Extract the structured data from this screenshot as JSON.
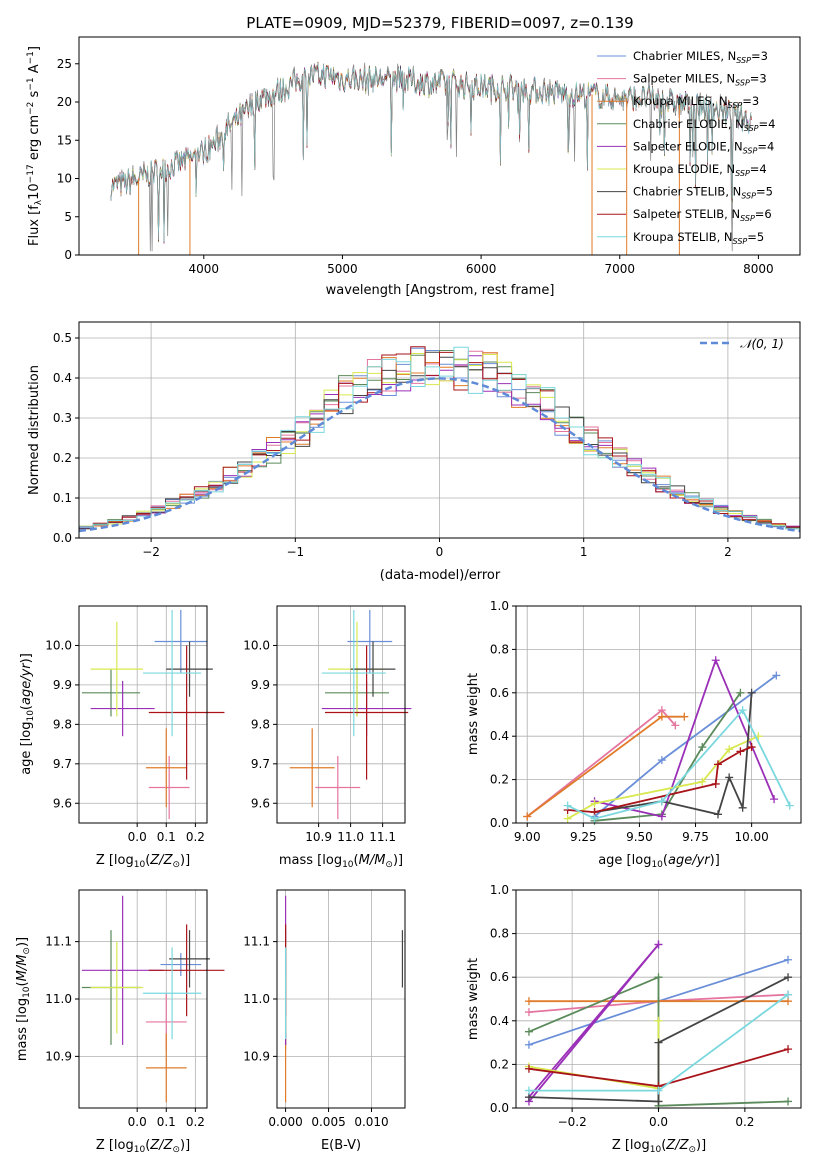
{
  "chart_data": [
    {
      "type": "line",
      "title": "PLATE=0909, MJD=52379, FIBERID=0097, z=0.139",
      "xlabel": "wavelength [Angstrom, rest frame]",
      "ylabel": "Flux [f$_\\lambda$10$^{-17}$ erg cm$^{-2}$ s$^{-1}$ A$^{-1}$]",
      "ylabel_parts": {
        "a": "Flux [f",
        "b": "λ",
        "c": "10",
        "d": "−17",
        "e": " erg cm",
        "f": "−2",
        "g": " s",
        "h": "−1",
        "i": " A",
        "j": "−1",
        "k": "]"
      },
      "xlim": [
        3100,
        8300
      ],
      "ylim": [
        0,
        28.5
      ],
      "xticks": [
        4000,
        5000,
        6000,
        7000,
        8000
      ],
      "yticks": [
        0,
        5,
        10,
        15,
        20,
        25
      ],
      "grid": false,
      "legend_position": "top-right",
      "continuum": {
        "x": [
          3330,
          3450,
          3600,
          3750,
          3900,
          4000,
          4100,
          4200,
          4300,
          4400,
          4500,
          4600,
          4700,
          4800,
          4900,
          5000,
          5200,
          5400,
          5600,
          5800,
          6000,
          6200,
          6400,
          6600,
          6800,
          7000,
          7200,
          7400,
          7600,
          7800,
          7950
        ],
        "y": [
          9,
          9.5,
          10.5,
          11.5,
          12.5,
          13.5,
          15,
          17,
          18.5,
          20.5,
          21,
          22,
          23,
          23.5,
          23.5,
          23,
          23,
          23,
          22.5,
          22.5,
          22,
          21.8,
          21.5,
          21,
          21,
          20.5,
          20.5,
          19.8,
          19.5,
          18.5,
          17.5
        ]
      },
      "series": [
        {
          "name_main": "Chabrier MILES, N",
          "name_sub": "SSP",
          "name_tail": "=3",
          "color": "#6a8fd8"
        },
        {
          "name_main": "Salpeter MILES, N",
          "name_sub": "SSP",
          "name_tail": "=3",
          "color": "#e4759f"
        },
        {
          "name_main": "Kroupa MILES, N",
          "name_sub": "SSP",
          "name_tail": "=3",
          "color": "#e07b2a"
        },
        {
          "name_main": "Chabrier ELODIE, N",
          "name_sub": "SSP",
          "name_tail": "=4",
          "color": "#5b8a5b"
        },
        {
          "name_main": "Salpeter ELODIE, N",
          "name_sub": "SSP",
          "name_tail": "=4",
          "color": "#9b30b8"
        },
        {
          "name_main": "Kroupa ELODIE, N",
          "name_sub": "SSP",
          "name_tail": "=4",
          "color": "#d8e84f"
        },
        {
          "name_main": "Chabrier STELIB, N",
          "name_sub": "SSP",
          "name_tail": "=5",
          "color": "#444444"
        },
        {
          "name_main": "Salpeter STELIB, N",
          "name_sub": "SSP",
          "name_tail": "=6",
          "color": "#a8141a"
        },
        {
          "name_main": "Kroupa STELIB, N",
          "name_sub": "SSP",
          "name_tail": "=5",
          "color": "#7ad8de"
        }
      ],
      "drops": [
        {
          "x": 3530,
          "color": "#e07b2a"
        },
        {
          "x": 3900,
          "color": "#e07b2a"
        },
        {
          "x": 6800,
          "color": "#e07b2a"
        },
        {
          "x": 7430,
          "color": "#e07b2a"
        },
        {
          "x": 7050,
          "color": "#e07b2a"
        }
      ]
    },
    {
      "type": "line",
      "xlabel": "(data-model)/error",
      "ylabel": "Normed distribution",
      "xlim": [
        -2.5,
        2.5
      ],
      "ylim": [
        0,
        0.54
      ],
      "xticks": [
        -2,
        -1,
        0,
        1,
        2
      ],
      "xtick_labels": [
        "−2",
        "−1",
        "0",
        "1",
        "2"
      ],
      "yticks": [
        0,
        0.1,
        0.2,
        0.3,
        0.4,
        0.5
      ],
      "ytick_labels": [
        "0.0",
        "0.1",
        "0.2",
        "0.3",
        "0.4",
        "0.5"
      ],
      "grid": true,
      "legend_position": "top-right",
      "gaussian_label": "𝒩(0, 1)",
      "gaussian_color": "#5f8ad8",
      "hist_bin_width": 0.1
    },
    {
      "type": "scatter",
      "xlabel": "Z [log$_{10}$(Z/Z$_\\odot$)]",
      "ylabel": "age [log$_{10}$(age/yr)]",
      "xlim": [
        -0.2,
        0.24
      ],
      "ylim": [
        9.55,
        10.1
      ],
      "xticks": [
        0.0,
        0.1,
        0.2
      ],
      "xtick_labels": [
        "0.0",
        "0.1",
        "0.2"
      ],
      "yticks": [
        9.6,
        9.7,
        9.8,
        9.9,
        10.0
      ],
      "ytick_labels": [
        "9.6",
        "9.7",
        "9.8",
        "9.9",
        "10.0"
      ],
      "grid": true,
      "points": [
        {
          "x": 0.15,
          "y": 10.01,
          "xerr": 0.09,
          "yerr": 0.08,
          "color": "#6a8fd8"
        },
        {
          "x": 0.11,
          "y": 9.64,
          "xerr": 0.07,
          "yerr": 0.08,
          "color": "#e4759f"
        },
        {
          "x": 0.1,
          "y": 9.69,
          "xerr": 0.07,
          "yerr": 0.1,
          "color": "#e07b2a"
        },
        {
          "x": -0.09,
          "y": 9.88,
          "xerr": 0.1,
          "yerr": 0.06,
          "color": "#5b8a5b"
        },
        {
          "x": -0.05,
          "y": 9.84,
          "xerr": 0.11,
          "yerr": 0.07,
          "color": "#9b30b8"
        },
        {
          "x": -0.07,
          "y": 9.94,
          "xerr": 0.09,
          "yerr": 0.12,
          "color": "#d8e84f"
        },
        {
          "x": 0.18,
          "y": 9.94,
          "xerr": 0.08,
          "yerr": 0.07,
          "color": "#444444"
        },
        {
          "x": 0.17,
          "y": 9.83,
          "xerr": 0.13,
          "yerr": 0.17,
          "color": "#a8141a"
        },
        {
          "x": 0.12,
          "y": 9.93,
          "xerr": 0.1,
          "yerr": 0.16,
          "color": "#7ad8de"
        }
      ]
    },
    {
      "type": "scatter",
      "xlabel": "mass [log$_{10}$(M/M$_\\odot$)]",
      "ylabel": "",
      "xlim": [
        10.77,
        11.17
      ],
      "ylim": [
        9.55,
        10.1
      ],
      "xticks": [
        10.9,
        11.0,
        11.1
      ],
      "xtick_labels": [
        "10.9",
        "11.0",
        "11.1"
      ],
      "yticks": [
        9.6,
        9.7,
        9.8,
        9.9,
        10.0
      ],
      "ytick_labels": [
        "9.6",
        "9.7",
        "9.8",
        "9.9",
        "10.0"
      ],
      "grid": true
    },
    {
      "type": "line",
      "xlabel": "age  [log$_{10}$(age/yr)]",
      "ylabel": "mass weight",
      "xlim": [
        8.95,
        10.22
      ],
      "ylim": [
        0,
        1.0
      ],
      "xticks": [
        9.0,
        9.25,
        9.5,
        9.75,
        10.0
      ],
      "xtick_labels": [
        "9.00",
        "9.25",
        "9.50",
        "9.75",
        "10.00"
      ],
      "yticks": [
        0,
        0.2,
        0.4,
        0.6,
        0.8,
        1.0
      ],
      "ytick_labels": [
        "0.0",
        "0.2",
        "0.4",
        "0.6",
        "0.8",
        "1.0"
      ],
      "grid": true,
      "series": [
        {
          "color": "#6a8fd8",
          "x": [
            9.3,
            9.6,
            10.11
          ],
          "y": [
            0.03,
            0.29,
            0.68
          ]
        },
        {
          "color": "#e4759f",
          "x": [
            9.0,
            9.6,
            9.66
          ],
          "y": [
            0.03,
            0.52,
            0.45
          ]
        },
        {
          "color": "#e07b2a",
          "x": [
            9.0,
            9.6,
            9.7
          ],
          "y": [
            0.03,
            0.49,
            0.49
          ]
        },
        {
          "color": "#5b8a5b",
          "x": [
            9.3,
            9.6,
            9.78,
            9.95
          ],
          "y": [
            0.01,
            0.04,
            0.35,
            0.6
          ]
        },
        {
          "color": "#9b30b8",
          "x": [
            9.3,
            9.6,
            9.84,
            10.1
          ],
          "y": [
            0.1,
            0.03,
            0.75,
            0.11
          ]
        },
        {
          "color": "#d8e84f",
          "x": [
            9.18,
            9.3,
            9.78,
            9.9,
            10.03
          ],
          "y": [
            0.02,
            0.09,
            0.19,
            0.34,
            0.4
          ]
        },
        {
          "color": "#444444",
          "x": [
            9.3,
            9.6,
            9.85,
            9.9,
            9.96,
            10.0
          ],
          "y": [
            0.05,
            0.1,
            0.04,
            0.21,
            0.07,
            0.6
          ]
        },
        {
          "color": "#a8141a",
          "x": [
            9.18,
            9.3,
            9.84,
            9.85,
            9.95,
            10.0
          ],
          "y": [
            0.06,
            0.05,
            0.18,
            0.27,
            0.33,
            0.35
          ]
        },
        {
          "color": "#7ad8de",
          "x": [
            9.18,
            9.3,
            9.6,
            9.96,
            10.17
          ],
          "y": [
            0.08,
            0.02,
            0.1,
            0.52,
            0.08
          ]
        }
      ]
    },
    {
      "type": "scatter",
      "xlabel": "Z [log$_{10}$(Z/Z$_\\odot$)]",
      "ylabel": "mass [log$_{10}$(M/M$_\\odot$)]",
      "xlim": [
        -0.2,
        0.24
      ],
      "ylim": [
        10.81,
        11.19
      ],
      "xticks": [
        0.0,
        0.1,
        0.2
      ],
      "xtick_labels": [
        "0.0",
        "0.1",
        "0.2"
      ],
      "yticks": [
        10.9,
        11.0,
        11.1
      ],
      "ytick_labels": [
        "10.9",
        "11.0",
        "11.1"
      ],
      "grid": true,
      "points": [
        {
          "x": 0.15,
          "y": 11.06,
          "xerr": 0.07,
          "yerr": 0.02,
          "color": "#6a8fd8"
        },
        {
          "x": 0.1,
          "y": 10.96,
          "xerr": 0.07,
          "yerr": 0.05,
          "color": "#e4759f"
        },
        {
          "x": 0.1,
          "y": 10.88,
          "xerr": 0.07,
          "yerr": 0.06,
          "color": "#e07b2a"
        },
        {
          "x": -0.09,
          "y": 11.02,
          "xerr": 0.1,
          "yerr": 0.1,
          "color": "#5b8a5b"
        },
        {
          "x": -0.05,
          "y": 11.05,
          "xerr": 0.14,
          "yerr": 0.13,
          "color": "#9b30b8"
        },
        {
          "x": -0.07,
          "y": 11.02,
          "xerr": 0.09,
          "yerr": 0.08,
          "color": "#d8e84f"
        },
        {
          "x": 0.18,
          "y": 11.07,
          "xerr": 0.07,
          "yerr": 0.05,
          "color": "#444444"
        },
        {
          "x": 0.17,
          "y": 11.05,
          "xerr": 0.13,
          "yerr": 0.08,
          "color": "#a8141a"
        },
        {
          "x": 0.12,
          "y": 11.01,
          "xerr": 0.1,
          "yerr": 0.08,
          "color": "#7ad8de"
        }
      ]
    },
    {
      "type": "scatter",
      "xlabel": "E(B-V)",
      "ylabel": "",
      "xlim": [
        -0.001,
        0.0139
      ],
      "ylim": [
        10.81,
        11.19
      ],
      "xticks": [
        0.0,
        0.005,
        0.01
      ],
      "xtick_labels": [
        "0.000",
        "0.005",
        "0.010"
      ],
      "yticks": [
        10.9,
        11.0,
        11.1
      ],
      "ytick_labels": [
        "10.9",
        "11.0",
        "11.1"
      ],
      "grid": true
    },
    {
      "type": "line",
      "xlabel": "Z [log$_{10}$(Z/Z$_\\odot$)]",
      "ylabel": "mass weight",
      "xlim": [
        -0.33,
        0.33
      ],
      "ylim": [
        0,
        1.0
      ],
      "xticks": [
        -0.2,
        0.0,
        0.2
      ],
      "xtick_labels": [
        "−0.2",
        "0.0",
        "0.2"
      ],
      "yticks": [
        0,
        0.2,
        0.4,
        0.6,
        0.8,
        1.0
      ],
      "ytick_labels": [
        "0.0",
        "0.2",
        "0.4",
        "0.6",
        "0.8",
        "1.0"
      ],
      "grid": true,
      "series": [
        {
          "color": "#6a8fd8",
          "x": [
            -0.3,
            0.0,
            0.3
          ],
          "y": [
            0.29,
            0.49,
            0.68
          ]
        },
        {
          "color": "#e4759f",
          "x": [
            -0.3,
            0.0,
            0.3
          ],
          "y": [
            0.44,
            0.49,
            0.52
          ]
        },
        {
          "color": "#e07b2a",
          "x": [
            -0.3,
            0.0,
            0.3
          ],
          "y": [
            0.49,
            0.49,
            0.49
          ]
        },
        {
          "color": "#5b8a5b",
          "x": [
            -0.3,
            0.0,
            0.0,
            0.3
          ],
          "y": [
            0.35,
            0.6,
            0.01,
            0.03
          ]
        },
        {
          "color": "#9b30b8",
          "x": [
            -0.3,
            0.0,
            0.0,
            -0.3
          ],
          "y": [
            0.03,
            0.75,
            0.75,
            0.05
          ]
        },
        {
          "color": "#d8e84f",
          "x": [
            -0.3,
            0.0,
            0.0
          ],
          "y": [
            0.19,
            0.09,
            0.4
          ]
        },
        {
          "color": "#444444",
          "x": [
            -0.3,
            0.0,
            0.0,
            0.3
          ],
          "y": [
            0.05,
            0.03,
            0.3,
            0.6
          ]
        },
        {
          "color": "#a8141a",
          "x": [
            -0.3,
            0.0,
            0.3
          ],
          "y": [
            0.18,
            0.1,
            0.27
          ]
        },
        {
          "color": "#7ad8de",
          "x": [
            -0.3,
            0.0,
            0.3
          ],
          "y": [
            0.08,
            0.08,
            0.52
          ]
        }
      ]
    }
  ]
}
